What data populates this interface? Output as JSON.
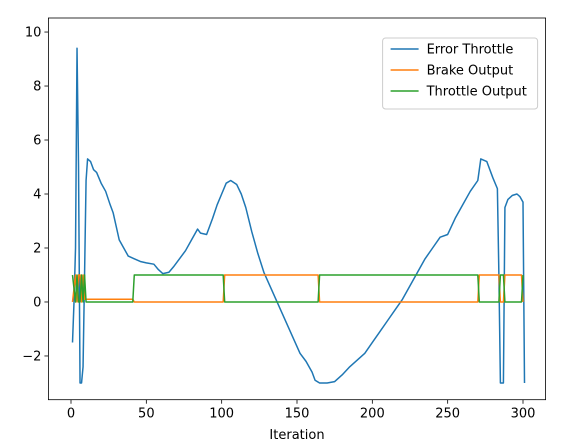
{
  "chart_data": {
    "type": "line",
    "xlabel": "Iteration",
    "xlim": [
      -15,
      315
    ],
    "ylim": [
      -3.62,
      10.52
    ],
    "xticks": [
      0,
      50,
      100,
      150,
      200,
      250,
      300
    ],
    "yticks": [
      {
        "value": -2,
        "label": "−2"
      },
      0,
      2,
      4,
      6,
      8,
      10
    ],
    "legend": "upper right",
    "series": [
      {
        "name": "Error Throttle",
        "color": "#1f77b4",
        "x": [
          1,
          2,
          3,
          4,
          5,
          6,
          7,
          8,
          9,
          10,
          11,
          13,
          15,
          17,
          20,
          23,
          26,
          28,
          30,
          32,
          35,
          38,
          42,
          46,
          50,
          55,
          58,
          61,
          65,
          68,
          72,
          76,
          80,
          84,
          86,
          90,
          94,
          97,
          100,
          103,
          106,
          110,
          113,
          116,
          120,
          124,
          128,
          132,
          136,
          140,
          144,
          148,
          152,
          156,
          160,
          162,
          165,
          170,
          175,
          180,
          185,
          190,
          195,
          200,
          205,
          210,
          215,
          220,
          225,
          230,
          235,
          240,
          245,
          250,
          255,
          260,
          265,
          270,
          272,
          276,
          280,
          283,
          284,
          285,
          287,
          288,
          290,
          293,
          296,
          298,
          300,
          301
        ],
        "values": [
          -1.5,
          0,
          2,
          9.4,
          5,
          -3,
          -3,
          -2.4,
          1,
          4.5,
          5.3,
          5.2,
          4.9,
          4.8,
          4.4,
          4.1,
          3.6,
          3.3,
          2.8,
          2.3,
          2,
          1.7,
          1.6,
          1.5,
          1.45,
          1.4,
          1.2,
          1.05,
          1.1,
          1.3,
          1.6,
          1.9,
          2.3,
          2.7,
          2.55,
          2.5,
          3.1,
          3.6,
          4,
          4.4,
          4.5,
          4.35,
          4,
          3.5,
          2.6,
          1.8,
          1.1,
          0.6,
          0.1,
          -0.4,
          -0.9,
          -1.4,
          -1.9,
          -2.2,
          -2.6,
          -2.9,
          -3,
          -3,
          -2.95,
          -2.7,
          -2.4,
          -2.15,
          -1.9,
          -1.5,
          -1.1,
          -0.7,
          -0.3,
          0.1,
          0.6,
          1.1,
          1.6,
          2,
          2.4,
          2.5,
          3.1,
          3.6,
          4.1,
          4.5,
          5.3,
          5.2,
          4.6,
          4.2,
          1,
          -3,
          -3,
          3.5,
          3.8,
          3.95,
          4,
          3.9,
          3.7,
          -3
        ]
      },
      {
        "name": "Brake Output",
        "color": "#ff7f0e",
        "x": [
          1,
          2,
          3,
          4,
          5,
          6,
          7,
          8,
          9,
          10,
          41,
          42,
          101,
          102,
          164,
          165,
          270,
          271,
          284,
          285,
          287,
          288,
          299,
          300
        ],
        "values": [
          0,
          0.5,
          1,
          0,
          1,
          1,
          0,
          1,
          0.1,
          0.1,
          0.1,
          0,
          0,
          1,
          1,
          0,
          0,
          1,
          1,
          0,
          0,
          1,
          1,
          0
        ]
      },
      {
        "name": "Throttle Output",
        "color": "#2ca02c",
        "x": [
          1,
          2,
          3,
          4,
          5,
          6,
          7,
          8,
          9,
          10,
          41,
          42,
          101,
          102,
          164,
          165,
          270,
          271,
          284,
          285,
          287,
          288,
          299,
          300
        ],
        "values": [
          1,
          0.5,
          0,
          1,
          0,
          0,
          1,
          0,
          1,
          0,
          0,
          1,
          1,
          0,
          0,
          1,
          1,
          0,
          0,
          1,
          1,
          0,
          0,
          1
        ]
      }
    ]
  }
}
